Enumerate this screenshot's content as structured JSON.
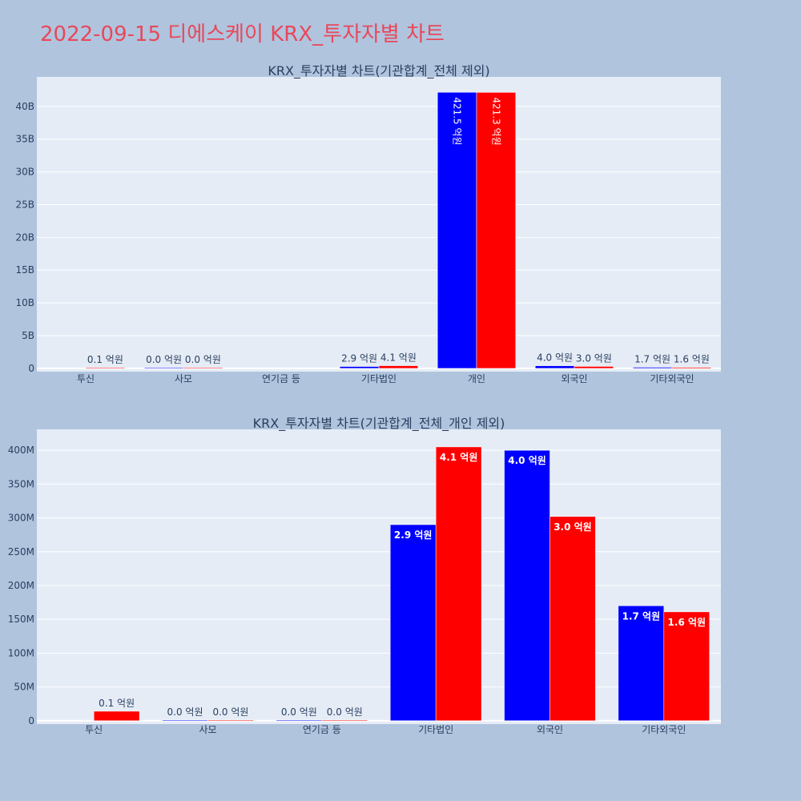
{
  "page": {
    "title": "2022-09-15 디에스케이 KRX_투자자별 차트"
  },
  "colors": {
    "buy": "#0000ff",
    "sell": "#ff0000",
    "plot_bg": "#e5ecf6",
    "page_bg": "#b0c4de",
    "title": "#e8485a"
  },
  "chart_data": [
    {
      "type": "bar",
      "title": "KRX_투자자별 차트(기관합계_전체 제외)",
      "categories": [
        "투신",
        "사모",
        "연기금 등",
        "기타법인",
        "개인",
        "외국인",
        "기타외국인"
      ],
      "series": [
        {
          "values": [
            0,
            1000000,
            0,
            290000000,
            42150000000,
            400000000,
            170000000
          ],
          "labels": [
            "",
            "0.0 억원",
            "",
            "2.9 억원",
            "421.5 억원",
            "4.0 억원",
            "1.7 억원"
          ]
        },
        {
          "values": [
            14000000,
            1000000,
            0,
            410000000,
            42130000000,
            300000000,
            160000000
          ],
          "labels": [
            "0.1 억원",
            "0.0 억원",
            "",
            "4.1 억원",
            "421.3 억원",
            "3.0 억원",
            "1.6 억원"
          ]
        }
      ],
      "ylim": [
        -500000000,
        44500000000
      ],
      "yticks": [
        0,
        5000000000,
        10000000000,
        15000000000,
        20000000000,
        25000000000,
        30000000000,
        35000000000,
        40000000000
      ],
      "ytick_labels": [
        "0",
        "5B",
        "10B",
        "15B",
        "20B",
        "25B",
        "30B",
        "35B",
        "40B"
      ],
      "grid": true,
      "legend": "none"
    },
    {
      "type": "bar",
      "title": "KRX_투자자별 차트(기관합계_전체_개인 제외)",
      "categories": [
        "투신",
        "사모",
        "연기금 등",
        "기타법인",
        "외국인",
        "기타외국인"
      ],
      "series": [
        {
          "values": [
            0,
            1000000,
            1000000,
            290000000,
            400000000,
            170000000
          ],
          "labels": [
            "",
            "0.0 억원",
            "0.0 억원",
            "2.9 억원",
            "4.0 억원",
            "1.7 억원"
          ]
        },
        {
          "values": [
            14000000,
            1000000,
            1000000,
            405000000,
            302000000,
            161000000
          ],
          "labels": [
            "0.1 억원",
            "0.0 억원",
            "0.0 억원",
            "4.1 억원",
            "3.0 억원",
            "1.6 억원"
          ]
        }
      ],
      "ylim": [
        -5000000,
        431000000
      ],
      "yticks": [
        0,
        50000000,
        100000000,
        150000000,
        200000000,
        250000000,
        300000000,
        350000000,
        400000000
      ],
      "ytick_labels": [
        "0",
        "50M",
        "100M",
        "150M",
        "200M",
        "250M",
        "300M",
        "350M",
        "400M"
      ],
      "grid": true,
      "legend": "none"
    }
  ]
}
